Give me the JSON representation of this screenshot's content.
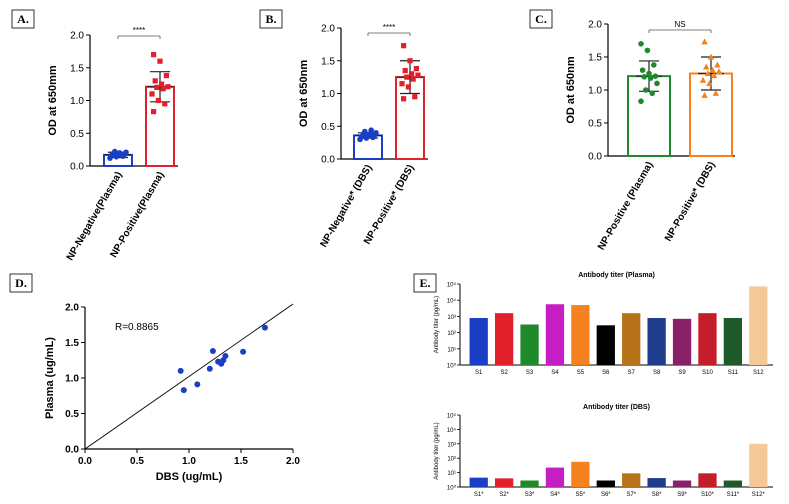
{
  "colors": {
    "blue": "#1a3fc4",
    "red": "#e0202a",
    "green": "#1e8a2a",
    "orange": "#f5821f",
    "axis": "#000000"
  },
  "chart_data": [
    {
      "id": "A",
      "panel_label": "A.",
      "type": "bar",
      "ylabel": "OD at 650mm",
      "ylim": [
        0,
        2.0
      ],
      "yticks": [
        "0.0",
        "0.5",
        "1.0",
        "1.5",
        "2.0"
      ],
      "significance": "****",
      "series": [
        {
          "name": "NP-Negative(Plasma)",
          "color": "blue",
          "mean": 0.17,
          "sd": 0.04,
          "points": [
            0.12,
            0.14,
            0.15,
            0.16,
            0.17,
            0.18,
            0.19,
            0.2,
            0.21,
            0.22
          ]
        },
        {
          "name": "NP-Positive(Plasma)",
          "color": "red",
          "mean": 1.21,
          "sd": 0.23,
          "points": [
            1.7,
            1.6,
            1.38,
            1.3,
            1.25,
            1.21,
            1.2,
            1.18,
            1.1,
            1.0,
            0.95,
            0.83
          ]
        }
      ]
    },
    {
      "id": "B",
      "panel_label": "B.",
      "type": "bar",
      "ylabel": "OD at 650nm",
      "ylim": [
        0,
        2.0
      ],
      "yticks": [
        "0.0",
        "0.5",
        "1.0",
        "1.5",
        "2.0"
      ],
      "significance": "****",
      "series": [
        {
          "name": "NP-Negative* (DBS)",
          "color": "blue",
          "mean": 0.36,
          "sd": 0.04,
          "points": [
            0.3,
            0.32,
            0.33,
            0.34,
            0.35,
            0.36,
            0.37,
            0.38,
            0.4,
            0.42,
            0.44
          ]
        },
        {
          "name": "NP-Positive* (DBS)",
          "color": "red",
          "mean": 1.25,
          "sd": 0.25,
          "points": [
            1.73,
            1.5,
            1.38,
            1.35,
            1.3,
            1.28,
            1.25,
            1.22,
            1.15,
            1.1,
            0.95,
            0.92
          ]
        }
      ]
    },
    {
      "id": "C",
      "panel_label": "C.",
      "type": "bar",
      "ylabel": "OD at 650nm",
      "ylim": [
        0,
        2.0
      ],
      "yticks": [
        "0.0",
        "0.5",
        "1.0",
        "1.5",
        "2.0"
      ],
      "significance": "NS",
      "series": [
        {
          "name": "NP-Positive (Plasma)",
          "color": "green",
          "mean": 1.21,
          "sd": 0.23,
          "points": [
            1.7,
            1.6,
            1.38,
            1.3,
            1.25,
            1.21,
            1.2,
            1.18,
            1.1,
            1.0,
            0.95,
            0.83
          ]
        },
        {
          "name": "NP-Positive* (DBS)",
          "color": "orange",
          "mean": 1.25,
          "sd": 0.25,
          "points": [
            1.73,
            1.5,
            1.38,
            1.35,
            1.3,
            1.28,
            1.25,
            1.22,
            1.15,
            1.1,
            0.95,
            0.92
          ]
        }
      ]
    },
    {
      "id": "D",
      "panel_label": "D.",
      "type": "scatter",
      "xlabel": "DBS (ug/mL)",
      "ylabel": "Plasma (ug/mL)",
      "xlim": [
        0,
        2.0
      ],
      "ylim": [
        0,
        2.0
      ],
      "xticks": [
        "0.0",
        "0.5",
        "1.0",
        "1.5",
        "2.0"
      ],
      "yticks": [
        "0.0",
        "0.5",
        "1.0",
        "1.5",
        "2.0"
      ],
      "annotation": "R=0.8865",
      "fit_line": [
        [
          0,
          0
        ],
        [
          2.0,
          2.18
        ]
      ],
      "points": [
        {
          "x": 0.92,
          "y": 1.1
        },
        {
          "x": 0.95,
          "y": 0.83
        },
        {
          "x": 1.08,
          "y": 0.91
        },
        {
          "x": 1.2,
          "y": 1.13
        },
        {
          "x": 1.23,
          "y": 1.38
        },
        {
          "x": 1.28,
          "y": 1.23
        },
        {
          "x": 1.31,
          "y": 1.2
        },
        {
          "x": 1.33,
          "y": 1.25
        },
        {
          "x": 1.35,
          "y": 1.31
        },
        {
          "x": 1.52,
          "y": 1.37
        },
        {
          "x": 1.73,
          "y": 1.71
        }
      ]
    },
    {
      "id": "E1",
      "panel_label": "E.",
      "type": "bar",
      "title": "Antibody titer (Plasma)",
      "ylabel": "Antibody titer (pg/mL)",
      "ylim_log": [
        0,
        5
      ],
      "yticks": [
        "10⁰",
        "10¹",
        "10²",
        "10³",
        "10⁴",
        "10⁵"
      ],
      "categories": [
        "S1",
        "S2",
        "S3",
        "S4",
        "S5",
        "S6",
        "S7",
        "S8",
        "S9",
        "S10",
        "S11",
        "S12"
      ],
      "log_values": [
        2.9,
        3.2,
        2.5,
        3.75,
        3.7,
        2.45,
        3.2,
        2.9,
        2.85,
        3.2,
        2.9,
        4.85
      ],
      "bar_colors": [
        "#1a3fc4",
        "#e0202a",
        "#1e8a2a",
        "#c41ec4",
        "#f5821f",
        "#000000",
        "#b8731a",
        "#1f3d8a",
        "#8a1f6a",
        "#c41e2a",
        "#1e5a2a",
        "#f5c89a"
      ]
    },
    {
      "id": "E2",
      "type": "bar",
      "title": "Antibody titer (DBS)",
      "ylabel": "Antibody titer (pg/mL)",
      "ylim_log": [
        0,
        5
      ],
      "yticks": [
        "10⁰",
        "10¹",
        "10²",
        "10³",
        "10⁴",
        "10⁵"
      ],
      "categories": [
        "S1*",
        "S2*",
        "S3*",
        "S4*",
        "S5*",
        "S6*",
        "S7*",
        "S8*",
        "S9*",
        "S10*",
        "S11*",
        "S12*"
      ],
      "log_values": [
        0.65,
        0.6,
        0.45,
        1.35,
        1.75,
        0.45,
        0.95,
        0.62,
        0.45,
        0.95,
        0.45,
        3.0
      ],
      "bar_colors": [
        "#1a3fc4",
        "#e0202a",
        "#1e8a2a",
        "#c41ec4",
        "#f5821f",
        "#000000",
        "#b8731a",
        "#1f3d8a",
        "#8a1f6a",
        "#c41e2a",
        "#1e5a2a",
        "#f5c89a"
      ]
    }
  ]
}
